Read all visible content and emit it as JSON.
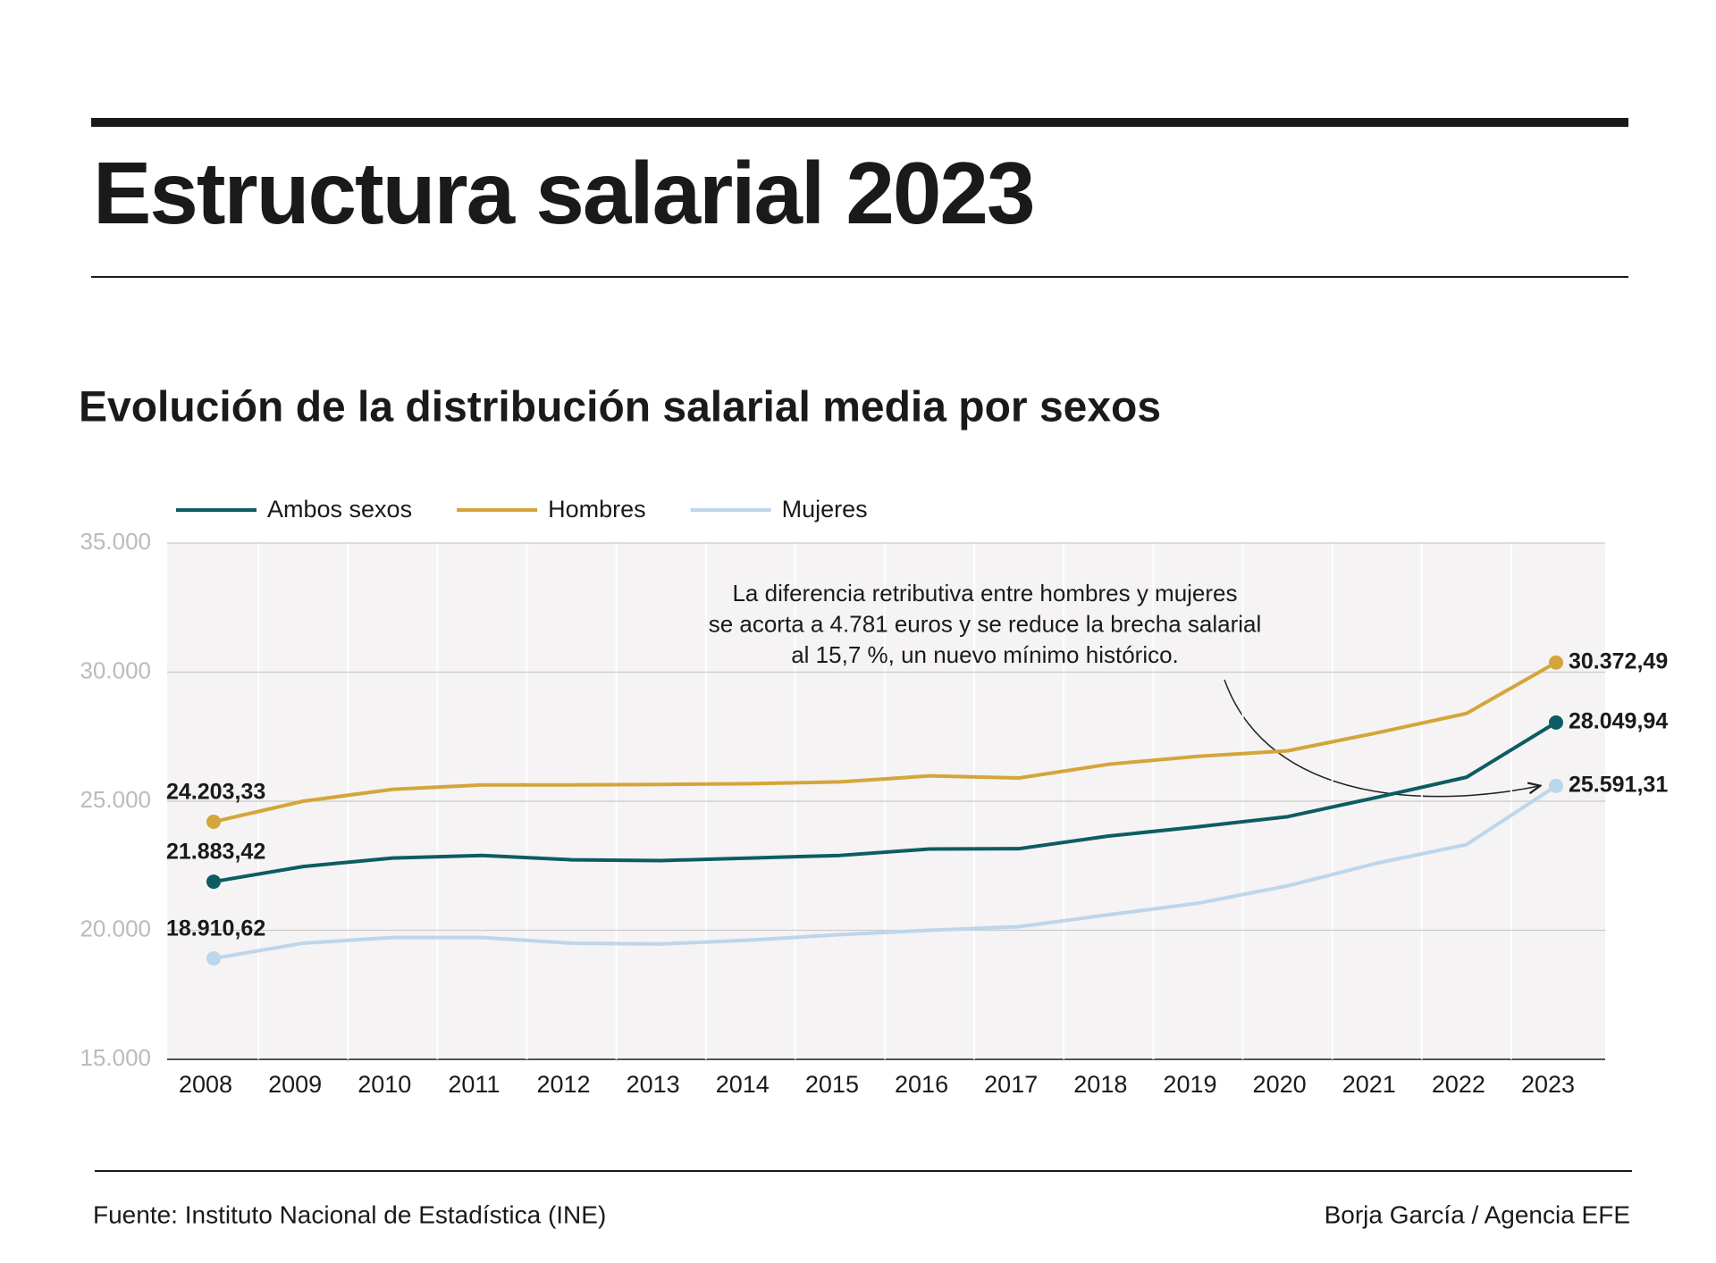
{
  "chart_data": {
    "type": "line",
    "title": "Estructura salarial 2023",
    "subtitle": "Evolución de la distribución salarial media por sexos",
    "categories": [
      "2008",
      "2009",
      "2010",
      "2011",
      "2012",
      "2013",
      "2014",
      "2015",
      "2016",
      "2017",
      "2018",
      "2019",
      "2020",
      "2021",
      "2022",
      "2023"
    ],
    "series": [
      {
        "name": "Ambos sexos",
        "color": "#0d5c63",
        "values": [
          21883.42,
          22470,
          22800,
          22900,
          22730,
          22700,
          22800,
          22900,
          23150,
          23160,
          23650,
          24010,
          24400,
          25150,
          25930,
          28049.94
        ],
        "value_labels": [
          "21.883,42",
          null,
          null,
          null,
          null,
          null,
          null,
          null,
          null,
          null,
          null,
          null,
          null,
          null,
          null,
          "28.049,94"
        ]
      },
      {
        "name": "Hombres",
        "color": "#d4a53a",
        "values": [
          24203.33,
          25000,
          25460,
          25630,
          25630,
          25650,
          25680,
          25750,
          25980,
          25900,
          26430,
          26740,
          26950,
          27650,
          28400,
          30372.49
        ],
        "value_labels": [
          "24.203,33",
          null,
          null,
          null,
          null,
          null,
          null,
          null,
          null,
          null,
          null,
          null,
          null,
          null,
          null,
          "30.372,49"
        ]
      },
      {
        "name": "Mujeres",
        "color": "#bcd6ec",
        "values": [
          18910.62,
          19500,
          19720,
          19720,
          19500,
          19470,
          19620,
          19830,
          20000,
          20140,
          20600,
          21050,
          21720,
          22600,
          23320,
          25591.31
        ],
        "value_labels": [
          "18.910,62",
          null,
          null,
          null,
          null,
          null,
          null,
          null,
          null,
          null,
          null,
          null,
          null,
          null,
          null,
          "25.591,31"
        ]
      }
    ],
    "ylim": [
      15000,
      35000
    ],
    "yticks": [
      {
        "value": 15000,
        "label": "15.000"
      },
      {
        "value": 20000,
        "label": "20.000"
      },
      {
        "value": 25000,
        "label": "25.000"
      },
      {
        "value": 30000,
        "label": "30.000"
      },
      {
        "value": 35000,
        "label": "35.000"
      }
    ],
    "grid": true,
    "legend": "top",
    "annotation": [
      "La diferencia retributiva entre hombres y mujeres",
      "se acorta a 4.781 euros y se reduce la brecha salarial",
      "al 15,7 %, un nuevo mínimo histórico."
    ],
    "source": "Fuente: Instituto Nacional de Estadística (INE)",
    "credit": "Borja García / Agencia EFE"
  }
}
